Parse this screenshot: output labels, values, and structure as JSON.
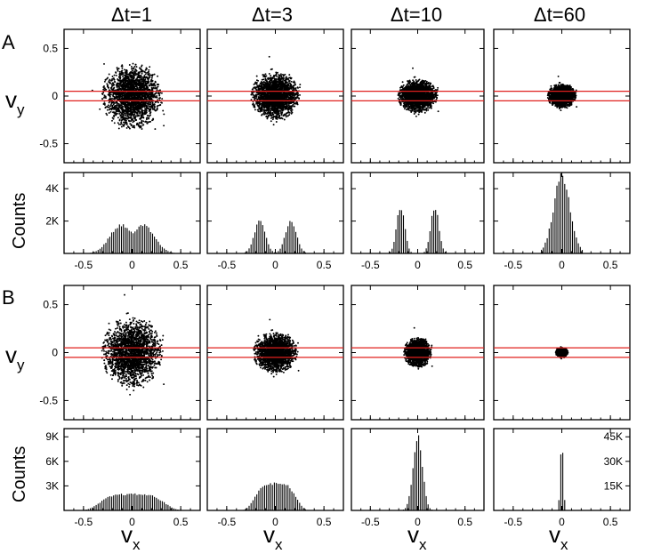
{
  "colors": {
    "points": "#000000",
    "band": "#e0201e",
    "bars": "#000000"
  },
  "panel_letters": [
    "A",
    "B"
  ],
  "column_titles": [
    "Δt=1",
    "Δt=3",
    "Δt=10",
    "Δt=60"
  ],
  "labels": {
    "vy": "v",
    "vy_sub": "y",
    "vx": "v",
    "vx_sub": "x",
    "counts": "Counts"
  },
  "chart_data": [
    {
      "type": "scatter",
      "panel": "A",
      "role": "velocity scatter",
      "xlim": [
        -0.7,
        0.7
      ],
      "ylim": [
        -0.7,
        0.7
      ],
      "yticks": [
        -0.5,
        0,
        0.5
      ],
      "ytick_labels": [
        "-0.5",
        "0",
        "0.5"
      ],
      "xticks": [
        -0.5,
        0,
        0.5
      ],
      "band": [
        -0.05,
        0.05
      ],
      "series": [
        {
          "dt": "Δt=1",
          "spread_x": 0.3,
          "spread_y": 0.33,
          "n_points": 2400
        },
        {
          "dt": "Δt=3",
          "spread_x": 0.24,
          "spread_y": 0.24,
          "n_points": 2400
        },
        {
          "dt": "Δt=10",
          "spread_x": 0.2,
          "spread_y": 0.17,
          "n_points": 2200
        },
        {
          "dt": "Δt=60",
          "spread_x": 0.14,
          "spread_y": 0.12,
          "n_points": 2000
        }
      ]
    },
    {
      "type": "bar",
      "panel": "A",
      "role": "histogram of v_x",
      "xlim": [
        -0.7,
        0.7
      ],
      "ylim": [
        0,
        5000
      ],
      "xticks": [
        -0.5,
        0,
        0.5
      ],
      "xtick_labels": [
        "-0.5",
        "0",
        "0.5"
      ],
      "yticks": [
        2000,
        4000
      ],
      "ytick_labels": [
        "2K",
        "4K"
      ],
      "series": [
        {
          "dt": "Δt=1",
          "shape": "bimodal",
          "peak": 1850,
          "mode_offset": 0.12,
          "width": 0.16,
          "support": 0.48
        },
        {
          "dt": "Δt=3",
          "shape": "bimodal",
          "peak": 2250,
          "mode_offset": 0.16,
          "width": 0.08,
          "support": 0.35
        },
        {
          "dt": "Δt=10",
          "shape": "bimodal",
          "peak": 3200,
          "mode_offset": 0.18,
          "width": 0.06,
          "support": 0.3
        },
        {
          "dt": "Δt=60",
          "shape": "unimodal",
          "peak": 4800,
          "mode_offset": 0.0,
          "width": 0.12,
          "support": 0.22
        }
      ]
    },
    {
      "type": "scatter",
      "panel": "B",
      "role": "velocity scatter",
      "xlim": [
        -0.7,
        0.7
      ],
      "ylim": [
        -0.7,
        0.7
      ],
      "yticks": [
        -0.5,
        0,
        0.5
      ],
      "ytick_labels": [
        "-0.5",
        "0",
        "0.5"
      ],
      "xticks": [
        -0.5,
        0,
        0.5
      ],
      "band": [
        -0.05,
        0.05
      ],
      "series": [
        {
          "dt": "Δt=1",
          "spread_x": 0.3,
          "spread_y": 0.35,
          "n_points": 2400
        },
        {
          "dt": "Δt=3",
          "spread_x": 0.22,
          "spread_y": 0.2,
          "n_points": 2200
        },
        {
          "dt": "Δt=10",
          "spread_x": 0.14,
          "spread_y": 0.15,
          "n_points": 1800
        },
        {
          "dt": "Δt=60",
          "spread_x": 0.06,
          "spread_y": 0.05,
          "n_points": 900
        }
      ]
    },
    {
      "type": "bar",
      "panel": "B",
      "role": "histogram of v_x",
      "xlim": [
        -0.7,
        0.7
      ],
      "xticks": [
        -0.5,
        0,
        0.5
      ],
      "xtick_labels": [
        "-0.5",
        "0",
        "0.5"
      ],
      "left_ylim": [
        0,
        10000
      ],
      "left_yticks": [
        3000,
        6000,
        9000
      ],
      "left_ytick_labels": [
        "3K",
        "6K",
        "9K"
      ],
      "right_ylim": [
        0,
        50000
      ],
      "right_yticks": [
        15000,
        30000,
        45000
      ],
      "right_ytick_labels": [
        "15K",
        "30K",
        "45K"
      ],
      "series": [
        {
          "dt": "Δt=1",
          "shape": "flat",
          "peak": 2000,
          "mode_offset": 0.0,
          "width": 0.2,
          "support": 0.52,
          "axis": "left"
        },
        {
          "dt": "Δt=3",
          "shape": "flat",
          "peak": 3300,
          "mode_offset": 0.0,
          "width": 0.13,
          "support": 0.33,
          "axis": "left"
        },
        {
          "dt": "Δt=10",
          "shape": "unimodal",
          "peak": 9200,
          "mode_offset": 0.0,
          "width": 0.07,
          "support": 0.22,
          "axis": "left"
        },
        {
          "dt": "Δt=60",
          "shape": "unimodal",
          "peak": 42000,
          "mode_offset": 0.0,
          "width": 0.022,
          "support": 0.06,
          "axis": "right"
        }
      ]
    }
  ]
}
